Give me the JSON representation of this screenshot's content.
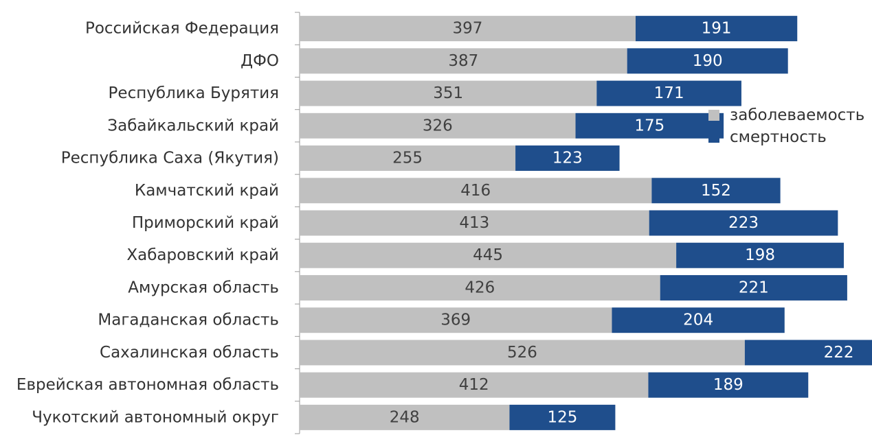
{
  "chart_data": {
    "type": "bar",
    "orientation": "horizontal",
    "stacked": true,
    "categories": [
      "Российская Федерация",
      "ДФО",
      "Республика Бурятия",
      "Забайкальский край",
      "Республика Саха (Якутия)",
      "Камчатский край",
      "Приморский край",
      "Хабаровский край",
      "Амурская область",
      "Магаданская область",
      "Сахалинская область",
      "Еврейская автономная область",
      "Чукотский автономный округ"
    ],
    "series": [
      {
        "name": "заболеваемость",
        "color": "#c0c0c0",
        "label_color": "#404040",
        "values": [
          397,
          387,
          351,
          326,
          255,
          416,
          413,
          445,
          426,
          369,
          526,
          412,
          248
        ]
      },
      {
        "name": "смертность",
        "color": "#1f4e8c",
        "label_color": "#ffffff",
        "values": [
          191,
          190,
          171,
          175,
          123,
          152,
          223,
          198,
          221,
          204,
          222,
          189,
          125
        ]
      }
    ],
    "title": "",
    "xlabel": "",
    "ylabel": "",
    "xlim": [
      0,
      800
    ],
    "grid": false,
    "legend": "right"
  }
}
